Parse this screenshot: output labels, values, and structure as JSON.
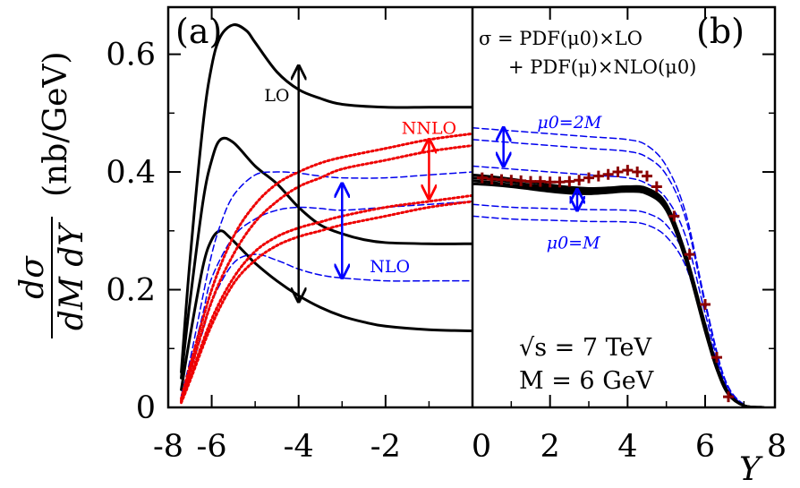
{
  "chart_data": [
    {
      "panel": "a",
      "type": "line",
      "panel_label": "(a)",
      "xlim": [
        -7,
        0
      ],
      "ylim": [
        0,
        0.68
      ],
      "ylabel_fraction_numerator": "dσ",
      "ylabel_fraction_denominator": "dM dY",
      "ylabel_units": "(nb/GeV)",
      "y_ticks": [
        "0",
        "0.2",
        "0.4",
        "0.6"
      ],
      "y_tick_values": [
        0,
        0.2,
        0.4,
        0.6
      ],
      "x_ticks": [
        "-8",
        "-6",
        "-4",
        "-2",
        "0"
      ],
      "x_tick_values": [
        -8,
        -6,
        -4,
        -2,
        0
      ],
      "series": [
        {
          "style": "solid-black",
          "x": [
            -6.7,
            -6.5,
            -6.2,
            -6.0,
            -5.8,
            -5.5,
            -5.2,
            -5.0,
            -4.5,
            -4.0,
            -3.5,
            -3.0,
            -2.0,
            -1.0,
            0.0
          ],
          "y": [
            0.06,
            0.25,
            0.48,
            0.58,
            0.63,
            0.65,
            0.64,
            0.62,
            0.57,
            0.54,
            0.525,
            0.515,
            0.51,
            0.51,
            0.51
          ]
        },
        {
          "style": "solid-black",
          "x": [
            -6.7,
            -6.5,
            -6.2,
            -6.0,
            -5.8,
            -5.5,
            -5.0,
            -4.5,
            -4.0,
            -3.5,
            -3.0,
            -2.5,
            -2.0,
            -1.0,
            0.0
          ],
          "y": [
            0.05,
            0.18,
            0.35,
            0.42,
            0.455,
            0.45,
            0.41,
            0.38,
            0.34,
            0.31,
            0.295,
            0.285,
            0.28,
            0.278,
            0.278
          ]
        },
        {
          "style": "solid-black",
          "x": [
            -6.7,
            -6.5,
            -6.2,
            -6.0,
            -5.8,
            -5.6,
            -5.2,
            -5.0,
            -4.5,
            -4.0,
            -3.5,
            -3.0,
            -2.5,
            -2.0,
            -1.0,
            0.0
          ],
          "y": [
            0.03,
            0.12,
            0.24,
            0.285,
            0.3,
            0.29,
            0.26,
            0.245,
            0.215,
            0.19,
            0.17,
            0.155,
            0.145,
            0.138,
            0.132,
            0.13
          ]
        },
        {
          "style": "dashed-blue",
          "x": [
            -6.7,
            -6.5,
            -6.2,
            -6.0,
            -5.8,
            -5.5,
            -5.0,
            -4.5,
            -4.0,
            -3.5,
            -3.0,
            -2.0,
            -1.0,
            0.0
          ],
          "y": [
            0.02,
            0.08,
            0.19,
            0.26,
            0.31,
            0.36,
            0.395,
            0.4,
            0.398,
            0.393,
            0.39,
            0.39,
            0.395,
            0.4
          ]
        },
        {
          "style": "dashed-blue",
          "x": [
            -6.7,
            -6.5,
            -6.2,
            -6.0,
            -5.5,
            -5.0,
            -4.5,
            -4.0,
            -3.5,
            -3.0,
            -2.0,
            -1.0,
            0.0
          ],
          "y": [
            0.015,
            0.07,
            0.16,
            0.22,
            0.29,
            0.32,
            0.335,
            0.34,
            0.338,
            0.335,
            0.34,
            0.345,
            0.35
          ]
        },
        {
          "style": "dashed-blue",
          "x": [
            -6.7,
            -6.5,
            -6.2,
            -6.0,
            -5.5,
            -5.0,
            -4.5,
            -4.0,
            -3.5,
            -3.0,
            -2.0,
            -1.0,
            0.0
          ],
          "y": [
            0.01,
            0.06,
            0.13,
            0.18,
            0.245,
            0.26,
            0.25,
            0.235,
            0.225,
            0.22,
            0.215,
            0.215,
            0.215
          ]
        },
        {
          "style": "dotted-red",
          "x": [
            -6.7,
            -6.5,
            -6.0,
            -5.5,
            -5.0,
            -4.5,
            -4.0,
            -3.5,
            -3.0,
            -2.0,
            -1.0,
            0.0
          ],
          "y": [
            0.015,
            0.07,
            0.2,
            0.29,
            0.345,
            0.38,
            0.4,
            0.415,
            0.425,
            0.44,
            0.455,
            0.465
          ]
        },
        {
          "style": "dotted-red",
          "x": [
            -6.7,
            -6.5,
            -6.0,
            -5.5,
            -5.0,
            -4.5,
            -4.0,
            -3.5,
            -3.0,
            -2.0,
            -1.0,
            0.0
          ],
          "y": [
            0.012,
            0.06,
            0.18,
            0.26,
            0.315,
            0.35,
            0.375,
            0.39,
            0.405,
            0.42,
            0.435,
            0.445
          ]
        },
        {
          "style": "dotted-red",
          "x": [
            -6.7,
            -6.5,
            -6.0,
            -5.5,
            -5.0,
            -4.5,
            -4.0,
            -3.5,
            -3.0,
            -2.0,
            -1.0,
            0.0
          ],
          "y": [
            0.01,
            0.05,
            0.15,
            0.22,
            0.265,
            0.29,
            0.305,
            0.315,
            0.325,
            0.34,
            0.35,
            0.36
          ]
        },
        {
          "style": "dotted-red",
          "x": [
            -6.7,
            -6.5,
            -6.0,
            -5.5,
            -5.0,
            -4.5,
            -4.0,
            -3.5,
            -3.0,
            -2.0,
            -1.0,
            0.0
          ],
          "y": [
            0.008,
            0.045,
            0.14,
            0.21,
            0.25,
            0.275,
            0.29,
            0.3,
            0.31,
            0.325,
            0.34,
            0.35
          ]
        }
      ],
      "annotations": [
        {
          "text": "LO",
          "color": "#000000",
          "arrow_x": -4.0,
          "arrow_y": [
            0.18,
            0.58
          ],
          "label_x": -4.5,
          "label_y": 0.52
        },
        {
          "text": "NLO",
          "color": "#0000ff",
          "arrow_x": -3.0,
          "arrow_y": [
            0.22,
            0.38
          ],
          "label_x": -1.9,
          "label_y": 0.23
        },
        {
          "text": "NNLO",
          "color": "#ff0000",
          "arrow_x": -1.0,
          "arrow_y": [
            0.355,
            0.455
          ],
          "label_x": -1.0,
          "label_y": 0.465
        }
      ]
    },
    {
      "panel": "b",
      "type": "line",
      "panel_label": "(b)",
      "xlim": [
        0,
        7.8
      ],
      "ylim": [
        0,
        0.68
      ],
      "xlabel": "Y",
      "x_ticks": [
        "0",
        "2",
        "4",
        "6",
        "8"
      ],
      "x_tick_values": [
        0,
        2,
        4,
        6,
        8
      ],
      "formula_line1": "σ = PDF(μ0)×LO",
      "formula_line2": "+ PDF(μ)×NLO(μ0)",
      "energy_line1": "√s = 7 TeV",
      "energy_line2": "M = 6 GeV",
      "series": [
        {
          "style": "dashed-blue",
          "x": [
            0,
            1,
            2,
            3,
            4,
            4.5,
            5,
            5.5,
            6,
            6.5,
            7,
            7.5
          ],
          "y": [
            0.475,
            0.47,
            0.465,
            0.46,
            0.455,
            0.445,
            0.41,
            0.33,
            0.18,
            0.05,
            0.005,
            0
          ]
        },
        {
          "style": "dashed-blue",
          "x": [
            0,
            1,
            2,
            3,
            4,
            4.5,
            5,
            5.5,
            6,
            6.5,
            7,
            7.5
          ],
          "y": [
            0.455,
            0.45,
            0.445,
            0.44,
            0.435,
            0.425,
            0.395,
            0.32,
            0.175,
            0.048,
            0.004,
            0
          ]
        },
        {
          "style": "dashed-blue",
          "x": [
            0,
            1,
            2,
            3,
            4,
            4.5,
            5,
            5.5,
            6,
            6.5,
            7,
            7.5
          ],
          "y": [
            0.41,
            0.405,
            0.4,
            0.395,
            0.39,
            0.38,
            0.355,
            0.29,
            0.16,
            0.044,
            0.004,
            0
          ]
        },
        {
          "style": "dashed-blue",
          "x": [
            0,
            1,
            2,
            3,
            4,
            4.5,
            5,
            5.5,
            6,
            6.5,
            7,
            7.5
          ],
          "y": [
            0.345,
            0.34,
            0.338,
            0.336,
            0.335,
            0.33,
            0.31,
            0.255,
            0.145,
            0.04,
            0.003,
            0
          ]
        },
        {
          "style": "dashed-blue",
          "x": [
            0,
            1,
            2,
            3,
            4,
            4.5,
            5,
            5.5,
            6,
            6.5,
            7,
            7.5
          ],
          "y": [
            0.325,
            0.32,
            0.318,
            0.316,
            0.315,
            0.31,
            0.29,
            0.24,
            0.135,
            0.037,
            0.003,
            0
          ]
        },
        {
          "style": "solid-black",
          "x": [
            0,
            0.5,
            1,
            1.5,
            2,
            2.5,
            3,
            3.5,
            4,
            4.5,
            5,
            5.5,
            6,
            6.3,
            6.6,
            7,
            7.5
          ],
          "y": [
            0.395,
            0.392,
            0.388,
            0.383,
            0.378,
            0.374,
            0.372,
            0.373,
            0.375,
            0.372,
            0.345,
            0.26,
            0.14,
            0.07,
            0.025,
            0.003,
            0
          ]
        },
        {
          "style": "solid-black",
          "x": [
            0,
            0.5,
            1,
            1.5,
            2,
            2.5,
            3,
            3.5,
            4,
            4.5,
            5,
            5.5,
            6,
            6.3,
            6.6,
            7,
            7.5
          ],
          "y": [
            0.39,
            0.387,
            0.383,
            0.378,
            0.374,
            0.37,
            0.368,
            0.37,
            0.372,
            0.368,
            0.34,
            0.255,
            0.135,
            0.068,
            0.024,
            0.003,
            0
          ]
        },
        {
          "style": "solid-black",
          "x": [
            0,
            0.5,
            1,
            1.5,
            2,
            2.5,
            3,
            3.5,
            4,
            4.5,
            5,
            5.5,
            6,
            6.3,
            6.6,
            7,
            7.5
          ],
          "y": [
            0.385,
            0.382,
            0.378,
            0.374,
            0.37,
            0.367,
            0.366,
            0.368,
            0.37,
            0.366,
            0.338,
            0.252,
            0.132,
            0.066,
            0.023,
            0.003,
            0
          ]
        },
        {
          "style": "solid-black",
          "x": [
            0,
            0.5,
            1,
            1.5,
            2,
            2.5,
            3,
            3.5,
            4,
            4.5,
            5,
            5.5,
            6,
            6.3,
            6.6,
            7,
            7.5
          ],
          "y": [
            0.38,
            0.378,
            0.375,
            0.371,
            0.367,
            0.364,
            0.363,
            0.365,
            0.367,
            0.363,
            0.335,
            0.25,
            0.13,
            0.065,
            0.022,
            0.003,
            0
          ]
        }
      ],
      "data_points": {
        "style": "plus-darkred",
        "x": [
          0.25,
          0.5,
          0.75,
          1.0,
          1.25,
          1.5,
          1.75,
          2.0,
          2.25,
          2.5,
          2.75,
          3.0,
          3.25,
          3.5,
          3.75,
          4.0,
          4.25,
          4.5,
          4.75,
          5.2,
          5.6,
          6.0,
          6.3,
          6.6
        ],
        "y": [
          0.39,
          0.388,
          0.387,
          0.386,
          0.385,
          0.384,
          0.384,
          0.383,
          0.383,
          0.384,
          0.386,
          0.39,
          0.393,
          0.396,
          0.4,
          0.403,
          0.4,
          0.393,
          0.375,
          0.325,
          0.26,
          0.175,
          0.085,
          0.018
        ]
      },
      "annotations": [
        {
          "text": "μ0=2M",
          "color": "#0000ff",
          "arrow_x": 0.8,
          "arrow_y": [
            0.41,
            0.475
          ],
          "label_x": 2.5,
          "label_y": 0.475
        },
        {
          "text": "μ0=M",
          "color": "#0000ff",
          "arrow_x": 2.7,
          "arrow_y": [
            0.335,
            0.37
          ],
          "label_x": 2.6,
          "label_y": 0.27
        }
      ]
    }
  ]
}
